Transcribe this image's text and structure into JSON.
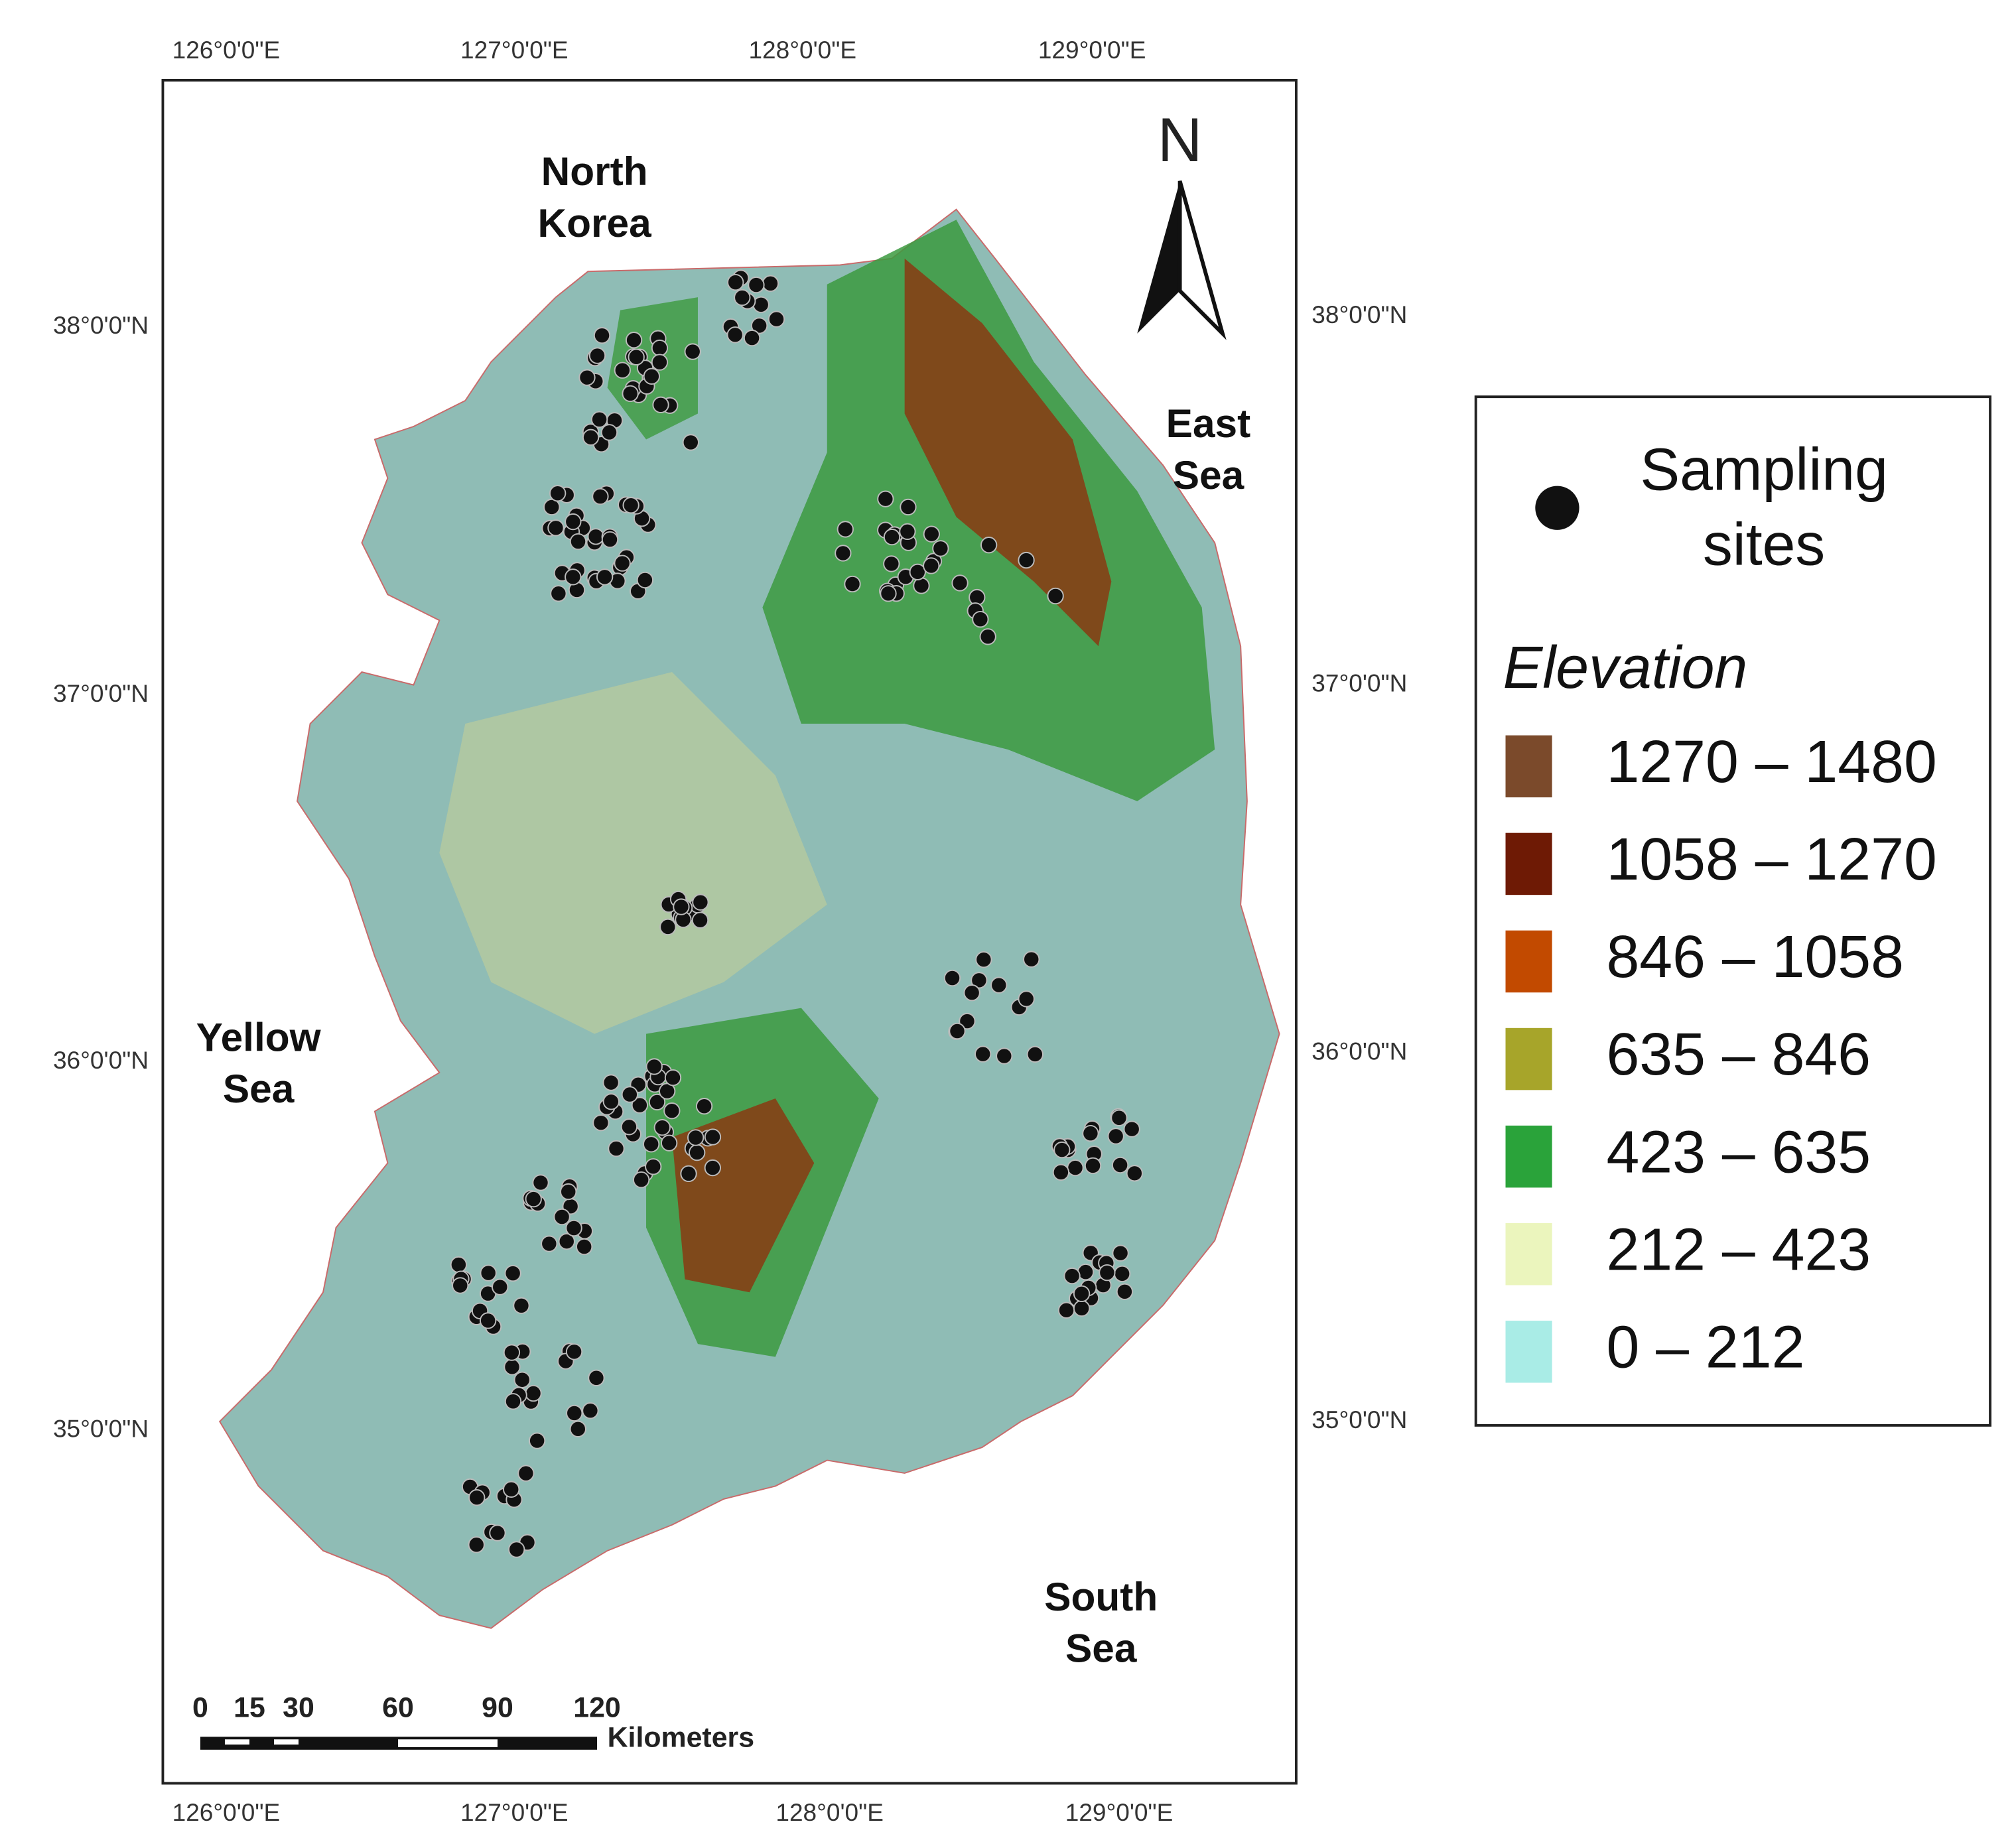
{
  "map": {
    "top_labels": [
      "126°0'0\"E",
      "127°0'0\"E",
      "128°0'0\"E",
      "129°0'0\"E"
    ],
    "bottom_labels": [
      "126°0'0\"E",
      "127°0'0\"E",
      "128°0'0\"E",
      "129°0'0\"E"
    ],
    "left_labels": [
      "38°0'0\"N",
      "37°0'0\"N",
      "36°0'0\"N",
      "35°0'0\"N"
    ],
    "right_labels": [
      "38°0'0\"N",
      "37°0'0\"N",
      "36°0'0\"N",
      "35°0'0\"N"
    ],
    "regions": [
      {
        "lines": [
          "North",
          "Korea"
        ]
      },
      {
        "lines": [
          "East",
          "Sea"
        ]
      },
      {
        "lines": [
          "Yellow",
          "Sea"
        ]
      },
      {
        "lines": [
          "South",
          "Sea"
        ]
      }
    ],
    "north": "N",
    "scale_labels": [
      "0",
      "15",
      "30",
      "60",
      "90",
      "120"
    ],
    "scale_unit": "Kilometers"
  },
  "legend": {
    "sites": [
      "Sampling",
      "sites"
    ],
    "elevation_title": "Elevation",
    "classes": [
      {
        "label": "1270 – 1480",
        "color": "#7b4a2b"
      },
      {
        "label": "1058 – 1270",
        "color": "#6e1a05"
      },
      {
        "label": "846 – 1058",
        "color": "#c24a00"
      },
      {
        "label": "635 – 846",
        "color": "#a7a52a"
      },
      {
        "label": "423 – 635",
        "color": "#2aa33a"
      },
      {
        "label": "212 – 423",
        "color": "#ebf5bd"
      },
      {
        "label": "0 – 212",
        "color": "#a9ece6"
      }
    ]
  }
}
